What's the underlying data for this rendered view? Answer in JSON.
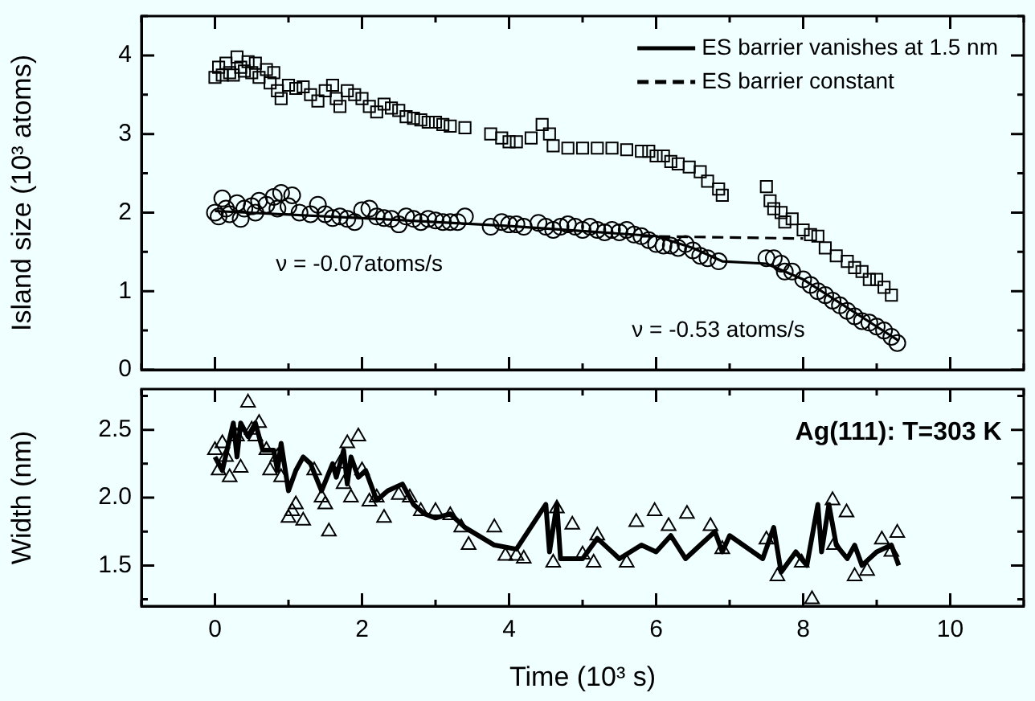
{
  "chart_data": [
    {
      "type": "scatter",
      "ylabel": "Island size (10³ atoms)",
      "xlim": [
        -1,
        11
      ],
      "xticks": [
        {
          "value": -1,
          "label": null
        },
        0,
        {
          "value": 1,
          "label": null
        },
        2,
        {
          "value": 3,
          "label": null
        },
        4,
        {
          "value": 5,
          "label": null
        },
        6,
        {
          "value": 7,
          "label": null
        },
        8,
        {
          "value": 9,
          "label": null
        },
        10,
        {
          "value": 11,
          "label": null
        }
      ],
      "ylim": [
        0,
        4.5
      ],
      "yticks": [
        0,
        {
          "value": 0.5,
          "label": null
        },
        1,
        {
          "value": 1.5,
          "label": null
        },
        2,
        {
          "value": 2.5,
          "label": null
        },
        3,
        {
          "value": 3.5,
          "label": null
        },
        4,
        {
          "value": 4.5,
          "label": null
        }
      ],
      "tick_labels": "y",
      "grid": false,
      "legend": "top right",
      "annotations": [
        "ν = -0.07atoms/s",
        "ν = -0.53 atoms/s"
      ],
      "series": [
        {
          "marker": "square",
          "color": "#000000",
          "x": [
            0,
            0.05,
            0.1,
            0.15,
            0.2,
            0.25,
            0.3,
            0.35,
            0.4,
            0.45,
            0.5,
            0.55,
            0.6,
            0.7,
            0.75,
            0.8,
            0.85,
            0.9,
            1,
            1.1,
            1.2,
            1.3,
            1.4,
            1.5,
            1.6,
            1.65,
            1.7,
            1.8,
            1.9,
            2,
            2.1,
            2.2,
            2.3,
            2.4,
            2.5,
            2.6,
            2.7,
            2.8,
            2.9,
            3,
            3.1,
            3.2,
            3.4,
            3.75,
            3.9,
            4,
            4.1,
            4.3,
            4.45,
            4.55,
            4.6,
            4.8,
            5,
            5.2,
            5.4,
            5.6,
            5.8,
            5.9,
            6,
            6.1,
            6.2,
            6.3,
            6.45,
            6.6,
            6.7,
            6.85,
            6.9,
            7.5,
            7.55,
            7.6,
            7.7,
            7.75,
            7.85,
            8,
            8.1,
            8.2,
            8.3,
            8.45,
            8.6,
            8.7,
            8.8,
            8.9,
            9,
            9.1,
            9.2
          ],
          "values": [
            3.72,
            3.85,
            3.75,
            3.9,
            3.78,
            3.75,
            3.98,
            3.85,
            3.8,
            3.92,
            3.78,
            3.9,
            3.72,
            3.82,
            3.65,
            3.78,
            3.55,
            3.45,
            3.62,
            3.58,
            3.6,
            3.5,
            3.42,
            3.55,
            3.62,
            3.45,
            3.35,
            3.55,
            3.5,
            3.45,
            3.35,
            3.28,
            3.38,
            3.33,
            3.3,
            3.22,
            3.2,
            3.18,
            3.15,
            3.15,
            3.12,
            3.1,
            3.08,
            3,
            2.95,
            2.9,
            2.9,
            2.95,
            3.12,
            3,
            2.85,
            2.82,
            2.82,
            2.82,
            2.82,
            2.8,
            2.78,
            2.78,
            2.72,
            2.72,
            2.65,
            2.62,
            2.58,
            2.52,
            2.4,
            2.3,
            2.22,
            2.33,
            2.15,
            2.05,
            2,
            1.88,
            1.92,
            1.78,
            1.72,
            1.7,
            1.55,
            1.45,
            1.38,
            1.3,
            1.25,
            1.15,
            1.15,
            1.05,
            0.95
          ]
        },
        {
          "marker": "circle",
          "color": "#000000",
          "x": [
            0,
            0.05,
            0.1,
            0.15,
            0.2,
            0.3,
            0.35,
            0.4,
            0.5,
            0.55,
            0.6,
            0.7,
            0.8,
            0.85,
            0.9,
            1,
            1.05,
            1.15,
            1.3,
            1.4,
            1.5,
            1.6,
            1.7,
            1.8,
            1.9,
            2,
            2.1,
            2.2,
            2.3,
            2.4,
            2.5,
            2.6,
            2.7,
            2.8,
            2.9,
            3,
            3.1,
            3.2,
            3.3,
            3.4,
            3.75,
            3.9,
            4,
            4.1,
            4.2,
            4.4,
            4.5,
            4.6,
            4.7,
            4.8,
            4.9,
            5,
            5.1,
            5.2,
            5.3,
            5.4,
            5.5,
            5.6,
            5.7,
            5.8,
            5.9,
            6,
            6.1,
            6.2,
            6.3,
            6.4,
            6.5,
            6.6,
            6.7,
            6.85,
            7.5,
            7.6,
            7.7,
            7.75,
            7.85,
            8,
            8.1,
            8.2,
            8.3,
            8.4,
            8.5,
            8.6,
            8.7,
            8.8,
            8.9,
            9,
            9.1,
            9.2,
            9.28
          ],
          "values": [
            2,
            1.95,
            2.18,
            2.05,
            1.98,
            2.12,
            1.92,
            2.05,
            2.08,
            2,
            2.15,
            2.1,
            2.2,
            2.05,
            2.25,
            2.08,
            2.22,
            2,
            1.98,
            2.1,
            1.98,
            1.93,
            1.95,
            1.92,
            1.88,
            2.03,
            2.05,
            1.95,
            1.93,
            1.92,
            1.85,
            1.95,
            1.92,
            1.88,
            1.92,
            1.9,
            1.88,
            1.88,
            1.88,
            1.95,
            1.82,
            1.88,
            1.85,
            1.85,
            1.82,
            1.87,
            1.82,
            1.78,
            1.82,
            1.85,
            1.82,
            1.78,
            1.82,
            1.78,
            1.75,
            1.78,
            1.75,
            1.78,
            1.72,
            1.7,
            1.65,
            1.6,
            1.58,
            1.58,
            1.55,
            1.6,
            1.52,
            1.45,
            1.42,
            1.38,
            1.42,
            1.42,
            1.35,
            1.25,
            1.25,
            1.15,
            1.08,
            1,
            0.95,
            0.88,
            0.82,
            0.75,
            0.68,
            0.62,
            0.6,
            0.55,
            0.5,
            0.42,
            0.34
          ]
        },
        {
          "type": "line",
          "name": "ES barrier vanishes at 1.5 nm",
          "line_style": "solid",
          "color": "#000000",
          "x": [
            0,
            2,
            4,
            6,
            6.5,
            6.9,
            7.5,
            8,
            8.5,
            9,
            9.3
          ],
          "values": [
            2.02,
            1.93,
            1.83,
            1.7,
            1.55,
            1.38,
            1.35,
            1.15,
            0.85,
            0.55,
            0.37
          ]
        },
        {
          "type": "line",
          "name": "ES barrier constant",
          "line_style": "dashed",
          "color": "#000000",
          "x": [
            5.8,
            8
          ],
          "values": [
            1.7,
            1.67
          ]
        }
      ]
    },
    {
      "type": "scatter",
      "xlabel": "Time (10³ s)",
      "ylabel": "Width (nm)",
      "xlim": [
        -1,
        11
      ],
      "xticks": [
        {
          "value": -1,
          "label": null
        },
        0,
        {
          "value": 1,
          "label": null
        },
        2,
        {
          "value": 3,
          "label": null
        },
        4,
        {
          "value": 5,
          "label": null
        },
        6,
        {
          "value": 7,
          "label": null
        },
        8,
        {
          "value": 9,
          "label": null
        },
        10,
        {
          "value": 11,
          "label": null
        }
      ],
      "ylim": [
        1.2,
        2.8
      ],
      "yticks": [
        {
          "value": 1.25,
          "label": null
        },
        1.5,
        {
          "value": 1.75,
          "label": null
        },
        {
          "value": 2,
          "label": "2.0"
        },
        {
          "value": 2.25,
          "label": null
        },
        2.5,
        {
          "value": 2.75,
          "label": null
        }
      ],
      "grid": false,
      "annotations": [
        "Ag(111): T=303 K"
      ],
      "series": [
        {
          "marker": "triangle",
          "color": "#000000",
          "x": [
            0,
            0.05,
            0.1,
            0.15,
            0.2,
            0.3,
            0.35,
            0.45,
            0.5,
            0.55,
            0.6,
            0.7,
            0.75,
            0.85,
            0.9,
            1,
            1.05,
            1.1,
            1.2,
            1.35,
            1.45,
            1.5,
            1.55,
            1.7,
            1.75,
            1.8,
            1.85,
            1.95,
            2,
            2.1,
            2.2,
            2.3,
            2.5,
            2.65,
            2.8,
            3,
            3.2,
            3.35,
            3.45,
            3.8,
            3.95,
            4.1,
            4.2,
            4.6,
            4.65,
            4.86,
            5,
            5.15,
            5.2,
            5.6,
            5.73,
            5.98,
            6.17,
            6.42,
            6.74,
            6.9,
            7.5,
            7.65,
            7.98,
            8.12,
            8.4,
            8.42,
            8.59,
            8.7,
            8.87,
            9.07,
            9.2,
            9.28
          ],
          "values": [
            2.35,
            2.2,
            2.4,
            2.3,
            2.15,
            2.45,
            2.22,
            2.7,
            2.5,
            2.45,
            2.55,
            2.35,
            2.2,
            2.3,
            2.15,
            1.85,
            1.9,
            1.95,
            1.83,
            2.2,
            2,
            1.95,
            1.75,
            2.25,
            2.1,
            2.4,
            2,
            2.45,
            2.2,
            1.97,
            2,
            1.85,
            2.02,
            2,
            1.9,
            1.9,
            1.87,
            1.78,
            1.65,
            1.78,
            1.57,
            1.57,
            1.55,
            1.52,
            1.92,
            1.8,
            1.58,
            1.52,
            1.72,
            1.52,
            1.82,
            1.9,
            1.79,
            1.88,
            1.79,
            1.62,
            1.69,
            1.42,
            1.52,
            1.25,
            1.98,
            1.65,
            1.89,
            1.42,
            1.46,
            1.69,
            1.6,
            1.74
          ]
        },
        {
          "type": "line",
          "line_style": "solid",
          "color": "#000000",
          "x": [
            0,
            0.1,
            0.25,
            0.3,
            0.35,
            0.45,
            0.55,
            0.65,
            0.8,
            0.85,
            0.9,
            1,
            1.1,
            1.2,
            1.3,
            1.45,
            1.6,
            1.65,
            1.75,
            1.8,
            1.85,
            1.95,
            2.05,
            2.2,
            2.35,
            2.55,
            2.7,
            2.85,
            3,
            3.2,
            3.4,
            3.8,
            4.1,
            4.5,
            4.55,
            4.65,
            4.7,
            5,
            5.2,
            5.5,
            5.8,
            6,
            6.2,
            6.4,
            6.6,
            6.8,
            6.9,
            7,
            7.45,
            7.6,
            7.7,
            7.9,
            8.05,
            8.2,
            8.25,
            8.35,
            8.45,
            8.6,
            8.7,
            8.8,
            9,
            9.2,
            9.3
          ],
          "values": [
            2.3,
            2.2,
            2.55,
            2.3,
            2.55,
            2.45,
            2.55,
            2.35,
            2.35,
            2.2,
            2.4,
            2.05,
            2.2,
            2.3,
            2.25,
            2.05,
            2.25,
            2.15,
            2.35,
            2.1,
            2.3,
            2.15,
            2.2,
            1.98,
            2.05,
            2.1,
            1.95,
            1.88,
            1.85,
            1.88,
            1.78,
            1.65,
            1.62,
            1.95,
            1.6,
            1.95,
            1.55,
            1.55,
            1.7,
            1.55,
            1.65,
            1.6,
            1.72,
            1.55,
            1.65,
            1.75,
            1.6,
            1.72,
            1.55,
            1.78,
            1.45,
            1.6,
            1.5,
            1.95,
            1.6,
            1.95,
            1.65,
            1.55,
            1.65,
            1.5,
            1.6,
            1.65,
            1.5
          ]
        }
      ]
    }
  ]
}
